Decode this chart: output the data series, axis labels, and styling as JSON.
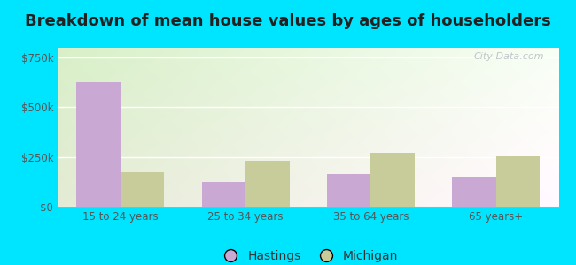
{
  "title": "Breakdown of mean house values by ages of householders",
  "categories": [
    "15 to 24 years",
    "25 to 34 years",
    "35 to 64 years",
    "65 years+"
  ],
  "hastings_values": [
    625000,
    125000,
    165000,
    150000
  ],
  "michigan_values": [
    175000,
    230000,
    270000,
    255000
  ],
  "hastings_color": "#c9a8d4",
  "michigan_color": "#c8cc9a",
  "outer_background": "#00e5ff",
  "ylim": [
    0,
    800000
  ],
  "yticks": [
    0,
    250000,
    500000,
    750000
  ],
  "ytick_labels": [
    "$0",
    "$250k",
    "$500k",
    "$750k"
  ],
  "title_fontsize": 13,
  "legend_labels": [
    "Hastings",
    "Michigan"
  ],
  "bar_width": 0.35,
  "watermark": "City-Data.com"
}
